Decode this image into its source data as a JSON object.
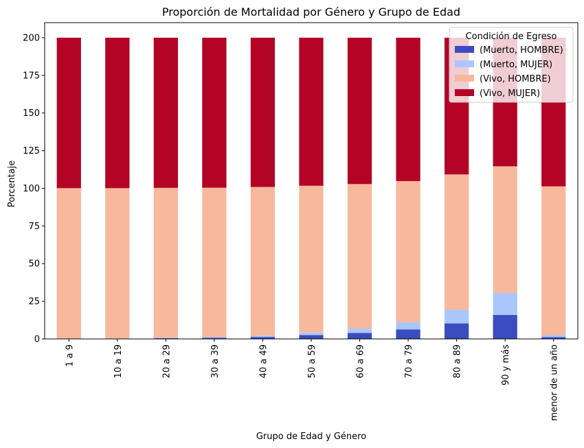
{
  "chart_data": {
    "type": "bar",
    "stacked": true,
    "title": "Proporción de Mortalidad por Género y Grupo de Edad",
    "xlabel": "Grupo de Edad y Género",
    "ylabel": "Porcentaje",
    "ylim": [
      0,
      210
    ],
    "yticks": [
      0,
      25,
      50,
      75,
      100,
      125,
      150,
      175,
      200
    ],
    "categories": [
      "1 a 9",
      "10 a 19",
      "20 a 29",
      "30 a 39",
      "40 a 49",
      "50 a 59",
      "60 a 69",
      "70 a 79",
      "80 a 89",
      "90 y más",
      "menor de un año"
    ],
    "legend_title": "Condición de Egreso",
    "legend_position": "top-right",
    "grid": false,
    "series": [
      {
        "name": "(Muerto, HOMBRE)",
        "color": "#3b4cc0",
        "values": [
          0.1,
          0.2,
          0.5,
          0.8,
          1.3,
          2.5,
          4.0,
          6.3,
          10.3,
          15.9,
          1.2
        ]
      },
      {
        "name": "(Muerto, MUJER)",
        "color": "#aac7fd",
        "values": [
          0.1,
          0.1,
          0.3,
          0.4,
          0.9,
          1.7,
          2.8,
          4.8,
          9.2,
          14.6,
          1.3
        ]
      },
      {
        "name": "(Vivo, HOMBRE)",
        "color": "#f7b89c",
        "values": [
          99.9,
          99.8,
          99.5,
          99.2,
          98.7,
          97.5,
          96.0,
          93.7,
          89.7,
          84.1,
          98.8
        ]
      },
      {
        "name": "(Vivo, MUJER)",
        "color": "#b40426",
        "values": [
          99.9,
          99.9,
          99.7,
          99.6,
          99.1,
          98.3,
          97.2,
          95.2,
          90.8,
          85.4,
          98.7
        ]
      }
    ]
  }
}
